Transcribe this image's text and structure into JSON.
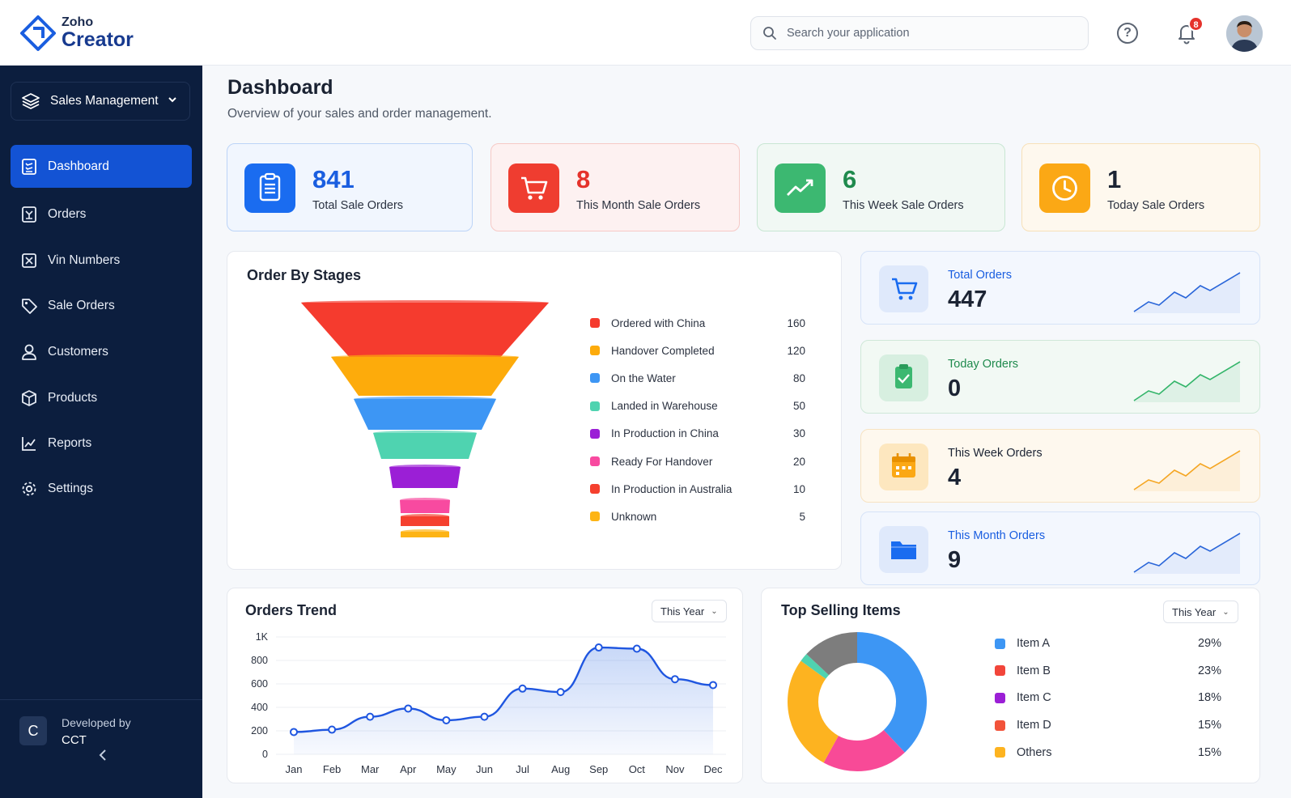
{
  "brand": {
    "small": "Zoho",
    "big": "Creator"
  },
  "search": {
    "placeholder": "Search your application"
  },
  "notifications": {
    "count": "8"
  },
  "sidebar": {
    "app_name": "Sales Management",
    "items": [
      {
        "label": "Dashboard",
        "icon": "dashboard-icon",
        "active": true
      },
      {
        "label": "Orders",
        "icon": "orders-icon"
      },
      {
        "label": "Vin Numbers",
        "icon": "vin-numbers-icon"
      },
      {
        "label": "Sale Orders",
        "icon": "tag-icon"
      },
      {
        "label": "Customers",
        "icon": "user-icon"
      },
      {
        "label": "Products",
        "icon": "box-icon"
      },
      {
        "label": "Reports",
        "icon": "reports-icon"
      },
      {
        "label": "Settings",
        "icon": "gear-icon"
      }
    ],
    "developer": {
      "initial": "C",
      "caption": "Developed by",
      "name": "CCT"
    }
  },
  "page": {
    "title": "Dashboard",
    "subtitle": "Overview of your sales and order management."
  },
  "stats": [
    {
      "value": "841",
      "label": "Total Sale Orders",
      "color": "#1a5ee0"
    },
    {
      "value": "8",
      "label": "This Month Sale Orders",
      "color": "#e5322b"
    },
    {
      "value": "6",
      "label": "This Week Sale Orders",
      "color": "#1f8a4d"
    },
    {
      "value": "1",
      "label": "Today Sale Orders",
      "color": "#1c2434"
    }
  ],
  "order_stages": {
    "title": "Order By Stages",
    "stages": [
      {
        "label": "Ordered with China",
        "value": "160",
        "color": "#f53b2e"
      },
      {
        "label": "Handover Completed",
        "value": "120",
        "color": "#fdab0b"
      },
      {
        "label": "On the Water",
        "value": "80",
        "color": "#3d96f4"
      },
      {
        "label": "Landed in Warehouse",
        "value": "50",
        "color": "#4fd3b0"
      },
      {
        "label": "In Production in China",
        "value": "30",
        "color": "#9b1fd6"
      },
      {
        "label": "Ready For Handover",
        "value": "20",
        "color": "#f84aa0"
      },
      {
        "label": "In Production in Australia",
        "value": "10",
        "color": "#f5402e"
      },
      {
        "label": "Unknown",
        "value": "5",
        "color": "#fdb414"
      }
    ]
  },
  "mini_cards": [
    {
      "label": "Total Orders",
      "value": "447",
      "label_color": "#1a5ee0",
      "line_color": "#2a66d9"
    },
    {
      "label": "Today Orders",
      "value": "0",
      "label_color": "#1f8a4d",
      "line_color": "#34b56a"
    },
    {
      "label": "This Week Orders",
      "value": "4",
      "label_color": "#1c2434",
      "line_color": "#f5a623"
    },
    {
      "label": "This Month Orders",
      "value": "9",
      "label_color": "#1a5ee0",
      "line_color": "#2a66d9"
    }
  ],
  "orders_trend": {
    "title": "Orders Trend",
    "filter": "This Year",
    "chart_data": {
      "type": "area",
      "categories": [
        "Jan",
        "Feb",
        "Mar",
        "Apr",
        "May",
        "Jun",
        "Jul",
        "Aug",
        "Sep",
        "Oct",
        "Nov",
        "Dec"
      ],
      "values": [
        190,
        210,
        320,
        390,
        290,
        320,
        560,
        530,
        910,
        900,
        640,
        590
      ],
      "ylim": [
        0,
        1000
      ],
      "yticks": [
        "0",
        "200",
        "400",
        "600",
        "800",
        "1K"
      ],
      "grid": true
    }
  },
  "top_selling": {
    "title": "Top Selling Items",
    "filter": "This Year",
    "chart_data": {
      "type": "pie",
      "items": [
        {
          "label": "Item A",
          "value": 29,
          "display": "29%",
          "color": "#3d96f4"
        },
        {
          "label": "Item B",
          "value": 23,
          "display": "23%",
          "color": "#f2453a"
        },
        {
          "label": "Item C",
          "value": 18,
          "display": "18%",
          "color": "#9b1fd6"
        },
        {
          "label": "Item D",
          "value": 15,
          "display": "15%",
          "color": "#f2533a"
        },
        {
          "label": "Others",
          "value": 15,
          "display": "15%",
          "color": "#fdb320"
        }
      ]
    }
  }
}
